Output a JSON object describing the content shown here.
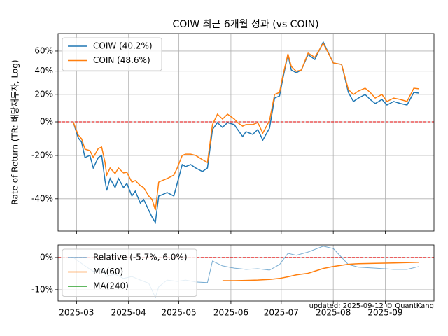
{
  "chart_data": [
    {
      "type": "line",
      "title": "COIW 최근 6개월 성과 (vs COIN)",
      "ylabel": "Rate of Return (TR: 배당재투자, Log)",
      "log": true,
      "grid": true,
      "legend": "upper left",
      "show_xtick_labels": false,
      "reference_line": 0,
      "reference_color": "#e00000",
      "xlim": [
        "2025-02-18",
        "2025-09-30"
      ],
      "xticks": [
        "2025-03",
        "2025-04",
        "2025-05",
        "2025-06",
        "2025-07",
        "2025-08",
        "2025-09"
      ],
      "ylim": [
        -51.6,
        79.7
      ],
      "yticks": [
        {
          "value": -40,
          "label": "-40%"
        },
        {
          "value": -20,
          "label": "-20%"
        },
        {
          "value": 0,
          "label": "0%"
        },
        {
          "value": 20,
          "label": "20%"
        },
        {
          "value": 40,
          "label": "40%"
        },
        {
          "value": 60,
          "label": "60%"
        }
      ],
      "x": [
        "2025-02-27",
        "2025-03-02",
        "2025-03-04",
        "2025-03-06",
        "2025-03-09",
        "2025-03-11",
        "2025-03-14",
        "2025-03-16",
        "2025-03-18",
        "2025-03-19",
        "2025-03-21",
        "2025-03-24",
        "2025-03-26",
        "2025-03-29",
        "2025-03-31",
        "2025-04-03",
        "2025-04-05",
        "2025-04-08",
        "2025-04-10",
        "2025-04-13",
        "2025-04-15",
        "2025-04-17",
        "2025-04-19",
        "2025-04-21",
        "2025-04-24",
        "2025-04-28",
        "2025-04-30",
        "2025-05-03",
        "2025-05-05",
        "2025-05-08",
        "2025-05-11",
        "2025-05-15",
        "2025-05-18",
        "2025-05-21",
        "2025-05-24",
        "2025-05-27",
        "2025-05-30",
        "2025-06-03",
        "2025-06-05",
        "2025-06-08",
        "2025-06-10",
        "2025-06-14",
        "2025-06-17",
        "2025-06-20",
        "2025-06-24",
        "2025-06-27",
        "2025-06-30",
        "2025-07-02",
        "2025-07-05",
        "2025-07-07",
        "2025-07-10",
        "2025-07-13",
        "2025-07-17",
        "2025-07-21",
        "2025-07-26",
        "2025-07-29",
        "2025-08-01",
        "2025-08-06",
        "2025-08-10",
        "2025-08-13",
        "2025-08-16",
        "2025-08-20",
        "2025-08-23",
        "2025-08-26",
        "2025-08-30",
        "2025-09-02",
        "2025-09-06",
        "2025-09-10",
        "2025-09-14",
        "2025-09-18",
        "2025-09-21"
      ],
      "series": [
        {
          "name": "COIW (40.2%)",
          "color": "#1f77b4",
          "values": [
            0,
            -10.1,
            -12.6,
            -21.1,
            -20.0,
            -26.4,
            -21.1,
            -20.0,
            -32.3,
            -36.6,
            -31.4,
            -35.4,
            -31.4,
            -35.4,
            -33.6,
            -38.9,
            -36.9,
            -41.7,
            -40.3,
            -44.4,
            -46.9,
            -48.8,
            -38.9,
            -38.4,
            -37.5,
            -38.9,
            -33.6,
            -24.7,
            -25.7,
            -24.7,
            -26.4,
            -28.1,
            -26.4,
            -5.0,
            -0.5,
            -3.6,
            -0.5,
            -1.8,
            -5.0,
            -9.3,
            -6.3,
            -8.0,
            -5.0,
            -11.4,
            -4.1,
            17.1,
            18.8,
            33.4,
            56.3,
            41.1,
            38.5,
            41.1,
            56.3,
            51.3,
            69.9,
            58.4,
            47.8,
            46.4,
            21.6,
            14.5,
            17.1,
            19.9,
            16.0,
            12.9,
            16.0,
            11.8,
            14.5,
            12.9,
            11.8,
            21.6,
            21.0
          ]
        },
        {
          "name": "COIN (48.6%)",
          "color": "#ff7f0e",
          "values": [
            0,
            -8.4,
            -10.6,
            -16.6,
            -17.4,
            -21.1,
            -16.2,
            -15.4,
            -23.7,
            -29.8,
            -26.4,
            -29.1,
            -26.4,
            -28.8,
            -28.5,
            -33.0,
            -32.3,
            -34.5,
            -35.4,
            -38.9,
            -40.3,
            -44.4,
            -33.0,
            -32.3,
            -31.4,
            -29.8,
            -26.4,
            -20.0,
            -19.3,
            -19.3,
            -20.0,
            -22.2,
            -23.7,
            -1.8,
            5.2,
            1.9,
            5.2,
            1.9,
            -0.5,
            -2.8,
            -1.8,
            -1.8,
            -0.5,
            -7.2,
            0.9,
            19.9,
            21.6,
            35.9,
            57.0,
            44.4,
            39.8,
            41.1,
            57.8,
            53.4,
            68.4,
            57.8,
            47.8,
            46.4,
            23.9,
            19.9,
            22.7,
            25.0,
            21.6,
            17.1,
            19.9,
            14.5,
            17.1,
            16.0,
            14.5,
            25.0,
            24.5
          ]
        }
      ]
    },
    {
      "type": "line",
      "grid": true,
      "legend": "upper left",
      "show_xtick_labels": true,
      "reference_line": 0,
      "reference_color": "#e00000",
      "annotation": "updated: 2025-09-12 © QuantKang",
      "xlim": [
        "2025-02-18",
        "2025-09-30"
      ],
      "xticks": [
        "2025-03",
        "2025-04",
        "2025-05",
        "2025-06",
        "2025-07",
        "2025-08",
        "2025-09"
      ],
      "ylim": [
        -13.5,
        3.9
      ],
      "yticks": [
        {
          "value": -10,
          "label": "-10%"
        },
        {
          "value": 0,
          "label": "0%"
        }
      ],
      "x": [
        "2025-02-27",
        "2025-03-02",
        "2025-03-06",
        "2025-03-11",
        "2025-03-16",
        "2025-03-19",
        "2025-03-24",
        "2025-03-29",
        "2025-04-03",
        "2025-04-08",
        "2025-04-13",
        "2025-04-17",
        "2025-04-19",
        "2025-04-24",
        "2025-04-30",
        "2025-05-05",
        "2025-05-11",
        "2025-05-18",
        "2025-05-21",
        "2025-05-27",
        "2025-06-03",
        "2025-06-10",
        "2025-06-17",
        "2025-06-24",
        "2025-06-30",
        "2025-07-05",
        "2025-07-10",
        "2025-07-17",
        "2025-07-26",
        "2025-08-01",
        "2025-08-10",
        "2025-08-16",
        "2025-08-26",
        "2025-09-06",
        "2025-09-14",
        "2025-09-21"
      ],
      "series": [
        {
          "name": "Relative (-5.7%, 6.0%)",
          "color": "#1f77b4",
          "opacity": 0.6,
          "values": [
            0,
            -1.1,
            -2.6,
            -4.3,
            -3.7,
            -5.9,
            -5.2,
            -6.5,
            -5.9,
            -7.0,
            -8.0,
            -12.4,
            -9.1,
            -7.0,
            -7.4,
            -7.0,
            -7.6,
            -7.8,
            -1.1,
            -2.6,
            -3.3,
            -3.7,
            -3.5,
            -3.9,
            -2.2,
            1.3,
            0.7,
            1.7,
            3.5,
            2.8,
            -2.2,
            -3.0,
            -3.3,
            -3.7,
            -3.7,
            -2.8
          ]
        },
        {
          "name": "MA(60)",
          "color": "#ff7f0e",
          "values": [
            null,
            null,
            null,
            null,
            null,
            null,
            null,
            null,
            null,
            null,
            null,
            null,
            null,
            null,
            null,
            null,
            null,
            null,
            null,
            -7.2,
            -7.2,
            -7.1,
            -7.0,
            -6.8,
            -6.5,
            -6.0,
            -5.4,
            -4.9,
            -3.4,
            -2.8,
            -2.1,
            -1.9,
            -1.8,
            -1.7,
            -1.6,
            -1.5
          ]
        },
        {
          "name": "MA(240)",
          "color": "#2ca02c",
          "values": [
            null,
            null,
            null,
            null,
            null,
            null,
            null,
            null,
            null,
            null,
            null,
            null,
            null,
            null,
            null,
            null,
            null,
            null,
            null,
            null,
            null,
            null,
            null,
            null,
            null,
            null,
            null,
            null,
            null,
            null,
            null,
            null,
            null,
            null,
            null,
            null
          ]
        }
      ]
    }
  ]
}
